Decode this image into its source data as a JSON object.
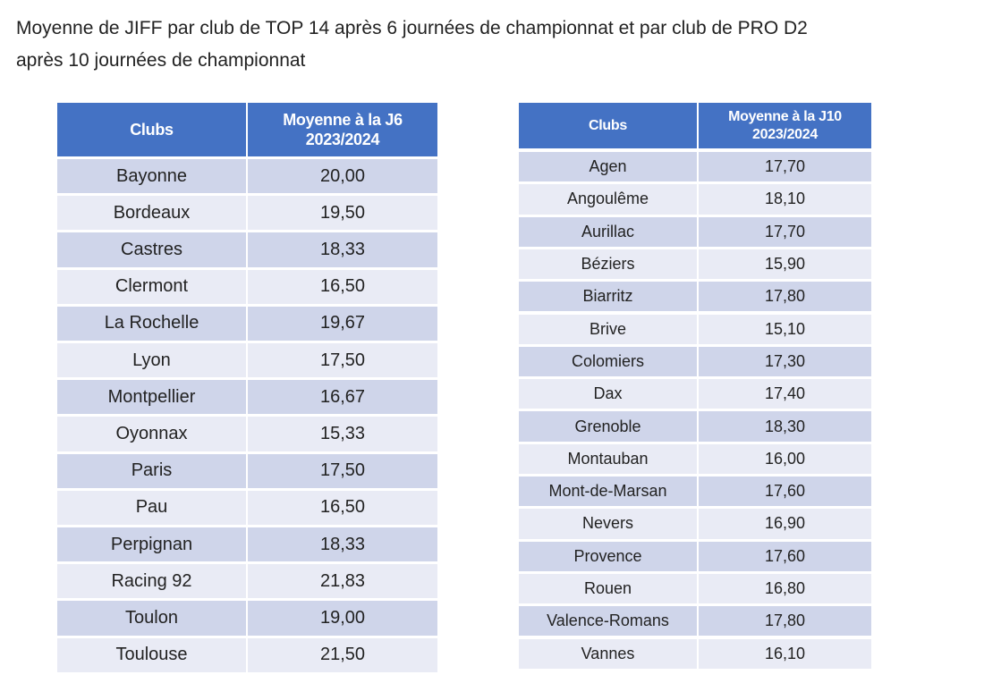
{
  "title": [
    "Moyenne de JIFF par club de TOP 14 après 6 journées de championnat et par club de PRO D2",
    "après 10 journées de championnat"
  ],
  "tables": [
    {
      "headers": [
        [
          "Clubs"
        ],
        [
          "Moyenne à la J6",
          "2023/2024"
        ]
      ],
      "rows": [
        [
          "Bayonne",
          "20,00"
        ],
        [
          "Bordeaux",
          "19,50"
        ],
        [
          "Castres",
          "18,33"
        ],
        [
          "Clermont",
          "16,50"
        ],
        [
          "La Rochelle",
          "19,67"
        ],
        [
          "Lyon",
          "17,50"
        ],
        [
          "Montpellier",
          "16,67"
        ],
        [
          "Oyonnax",
          "15,33"
        ],
        [
          "Paris",
          "17,50"
        ],
        [
          "Pau",
          "16,50"
        ],
        [
          "Perpignan",
          "18,33"
        ],
        [
          "Racing 92",
          "21,83"
        ],
        [
          "Toulon",
          "19,00"
        ],
        [
          "Toulouse",
          "21,50"
        ]
      ]
    },
    {
      "headers": [
        [
          "Clubs"
        ],
        [
          "Moyenne à la J10",
          "2023/2024"
        ]
      ],
      "rows": [
        [
          "Agen",
          "17,70"
        ],
        [
          "Angoulême",
          "18,10"
        ],
        [
          "Aurillac",
          "17,70"
        ],
        [
          "Béziers",
          "15,90"
        ],
        [
          "Biarritz",
          "17,80"
        ],
        [
          "Brive",
          "15,10"
        ],
        [
          "Colomiers",
          "17,30"
        ],
        [
          "Dax",
          "17,40"
        ],
        [
          "Grenoble",
          "18,30"
        ],
        [
          "Montauban",
          "16,00"
        ],
        [
          "Mont-de-Marsan",
          "17,60"
        ],
        [
          "Nevers",
          "16,90"
        ],
        [
          "Provence",
          "17,60"
        ],
        [
          "Rouen",
          "16,80"
        ],
        [
          "Valence-Romans",
          "17,80"
        ],
        [
          "Vannes",
          "16,10"
        ]
      ]
    }
  ]
}
